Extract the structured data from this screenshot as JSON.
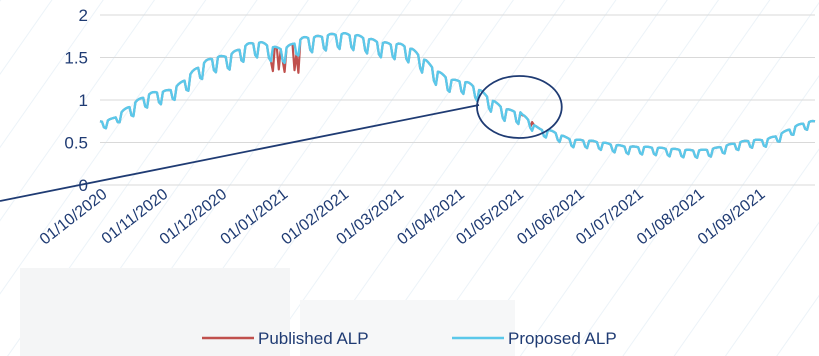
{
  "chart_data": {
    "type": "line",
    "title": "",
    "xlabel": "",
    "ylabel": "",
    "ylim": [
      0,
      2
    ],
    "y_ticks": [
      "0",
      "0.5",
      "1",
      "1.5",
      "2"
    ],
    "x_tick_labels": [
      "01/10/2020",
      "01/11/2020",
      "01/12/2020",
      "01/01/2021",
      "01/02/2021",
      "01/03/2021",
      "01/04/2021",
      "01/05/2021",
      "01/06/2021",
      "01/07/2021",
      "01/08/2021",
      "01/09/2021"
    ],
    "x_range": [
      "2020-10-01",
      "2021-09-30"
    ],
    "grid": "horizontal",
    "legend_position": "bottom",
    "weekly_pattern": "weekday peaks with weekend dips",
    "series": [
      {
        "name": "Proposed ALP",
        "color": "#5bc8ea",
        "points": [
          [
            "2020-10-01",
            0.72
          ],
          [
            "2020-11-01",
            1.05
          ],
          [
            "2020-12-01",
            1.45
          ],
          [
            "2020-12-20",
            1.62
          ],
          [
            "2021-01-01",
            1.55
          ],
          [
            "2021-01-15",
            1.68
          ],
          [
            "2021-02-01",
            1.72
          ],
          [
            "2021-03-01",
            1.6
          ],
          [
            "2021-04-01",
            1.18
          ],
          [
            "2021-05-01",
            0.82
          ],
          [
            "2021-05-15",
            0.62
          ],
          [
            "2021-06-01",
            0.5
          ],
          [
            "2021-07-01",
            0.42
          ],
          [
            "2021-08-01",
            0.38
          ],
          [
            "2021-09-01",
            0.5
          ],
          [
            "2021-09-30",
            0.72
          ]
        ]
      },
      {
        "name": "Published ALP",
        "color": "#c0504d",
        "differs_from_proposed": [
          [
            "2020-12-28",
            1.34
          ],
          [
            "2020-12-31",
            1.36
          ],
          [
            "2021-01-03",
            1.33
          ],
          [
            "2021-01-08",
            1.35
          ],
          [
            "2021-01-10",
            1.32
          ],
          [
            "2021-05-04",
            0.82
          ],
          [
            "2021-05-09",
            0.74
          ]
        ]
      }
    ],
    "annotation": {
      "shape": "ellipse",
      "color": "#1f3b73",
      "highlights": [
        "2021-04-15",
        "2021-05-20"
      ],
      "has_pointer_line": true
    }
  }
}
